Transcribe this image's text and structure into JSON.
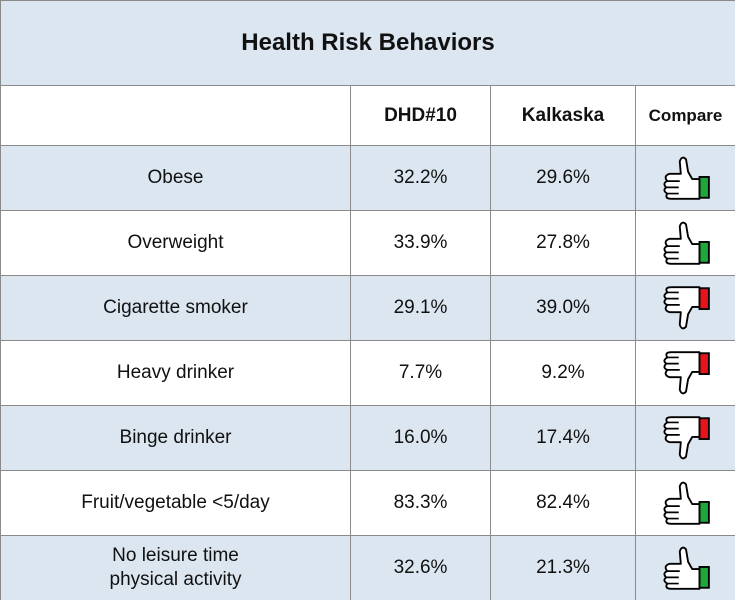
{
  "table": {
    "title": "Health Risk Behaviors",
    "columns": [
      "DHD#10",
      "Kalkaska",
      "Compare"
    ],
    "rows": [
      [
        "Obese",
        "32.2%",
        "29.6%"
      ],
      [
        "Overweight",
        "33.9%",
        "27.8%"
      ],
      [
        "Cigarette smoker",
        "29.1%",
        "39.0%"
      ],
      [
        "Heavy drinker",
        "7.7%",
        "9.2%"
      ],
      [
        "Binge drinker",
        "16.0%",
        "17.4%"
      ],
      [
        "Fruit/vegetable <5/day",
        "83.3%",
        "82.4%"
      ],
      [
        "No leisure time physical activity",
        "32.6%",
        "21.3%"
      ]
    ]
  }
}
